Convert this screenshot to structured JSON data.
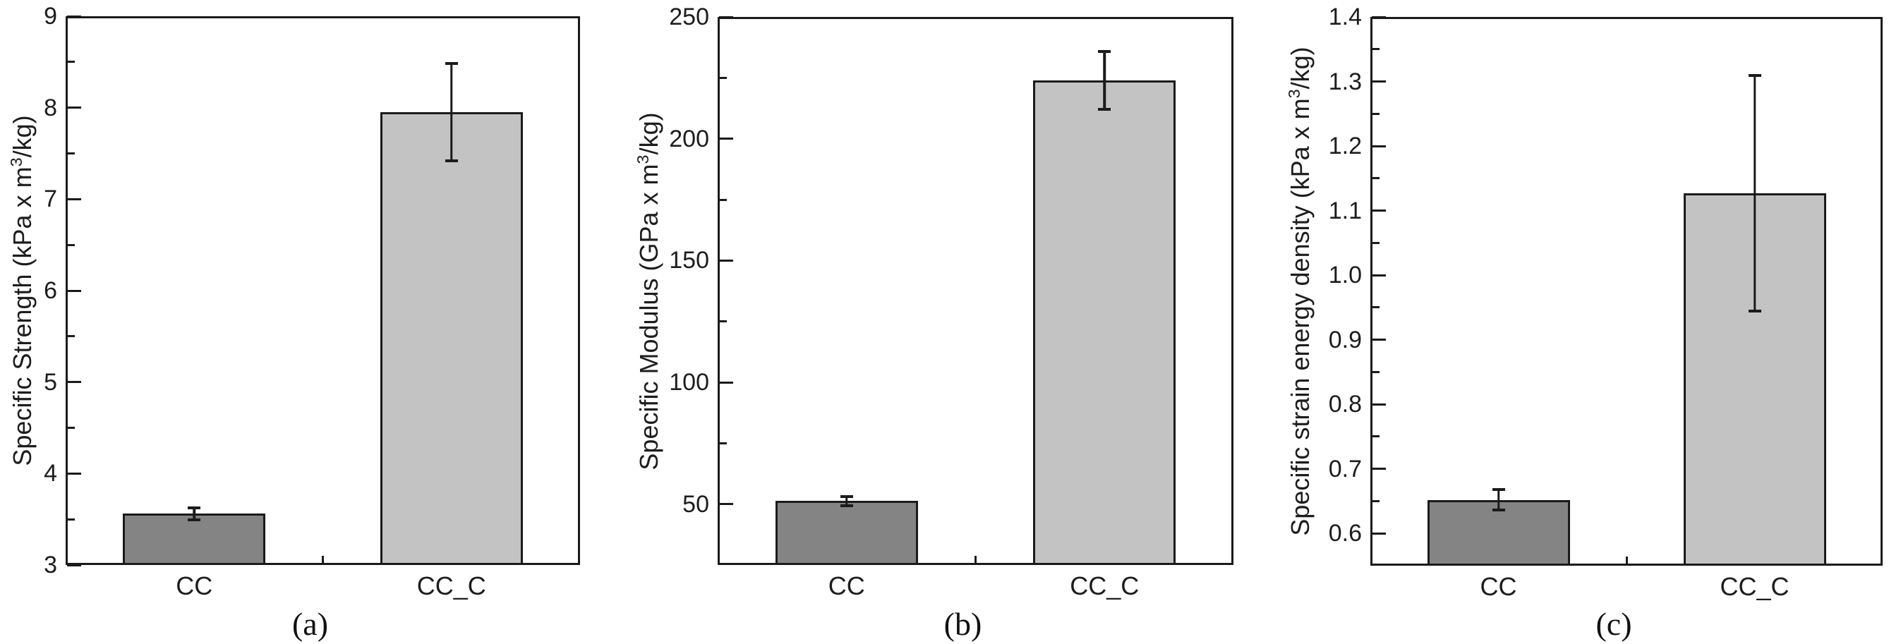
{
  "figure": {
    "background": "#ffffff",
    "axis_color": "#1b1b1b",
    "captions": [
      "(a)",
      "(b)",
      "(c)"
    ]
  },
  "chart_data": [
    {
      "type": "bar",
      "title": "",
      "xlabel": "",
      "ylabel": "Specific Strength (kPa x m3/kg)",
      "ylabel_parts": {
        "prefix": "Specific Strength (kPa x m",
        "sup": "3",
        "suffix": "/kg)"
      },
      "categories": [
        "CC",
        "CC_C"
      ],
      "values": [
        3.56,
        7.95
      ],
      "errors": [
        0.08,
        0.55
      ],
      "bar_colors": [
        "#848484",
        "#c3c3c3"
      ],
      "ylim": [
        3,
        9
      ],
      "ytick_values": [
        9,
        8,
        7,
        6,
        5,
        4,
        3
      ],
      "ytick_labels": [
        "9",
        "8",
        "7",
        "6",
        "5",
        "4",
        "3"
      ],
      "minor_step": 0.5,
      "grid": "off",
      "legend": "none",
      "caption": "(a)"
    },
    {
      "type": "bar",
      "title": "",
      "xlabel": "",
      "ylabel": "Specific Modulus (GPa x m3/kg)",
      "ylabel_parts": {
        "prefix": "Specific Modulus (GPa x m",
        "sup": "3",
        "suffix": "/kg)"
      },
      "categories": [
        "CC",
        "CC_C"
      ],
      "values": [
        51.3,
        224
      ],
      "errors": [
        2.5,
        12.5
      ],
      "bar_colors": [
        "#848484",
        "#c3c3c3"
      ],
      "ylim": [
        25,
        250
      ],
      "ytick_values": [
        250,
        200,
        150,
        100,
        50
      ],
      "ytick_labels": [
        "250",
        "200",
        "150",
        "100",
        "50"
      ],
      "minor_step": 25,
      "grid": "off",
      "legend": "none",
      "caption": "(b)"
    },
    {
      "type": "bar",
      "title": "",
      "xlabel": "",
      "ylabel": "Specific strain energy density (kPa x m3/kg)",
      "ylabel_parts": {
        "prefix": "Specific strain energy density (kPa x m",
        "sup": "3",
        "suffix": "/kg)"
      },
      "categories": [
        "CC",
        "CC_C"
      ],
      "values": [
        0.652,
        1.127
      ],
      "errors": [
        0.018,
        0.185
      ],
      "bar_colors": [
        "#848484",
        "#c3c3c3"
      ],
      "ylim": [
        0.55,
        1.4
      ],
      "ytick_values": [
        1.4,
        1.3,
        1.2,
        1.1,
        1.0,
        0.9,
        0.8,
        0.7,
        0.6
      ],
      "ytick_labels": [
        "1.4",
        "1.3",
        "1.2",
        "1.1",
        "1.0",
        "0.9",
        "0.8",
        "0.7",
        "0.6"
      ],
      "minor_step": 0.05,
      "grid": "off",
      "legend": "none",
      "caption": "(c)"
    }
  ]
}
